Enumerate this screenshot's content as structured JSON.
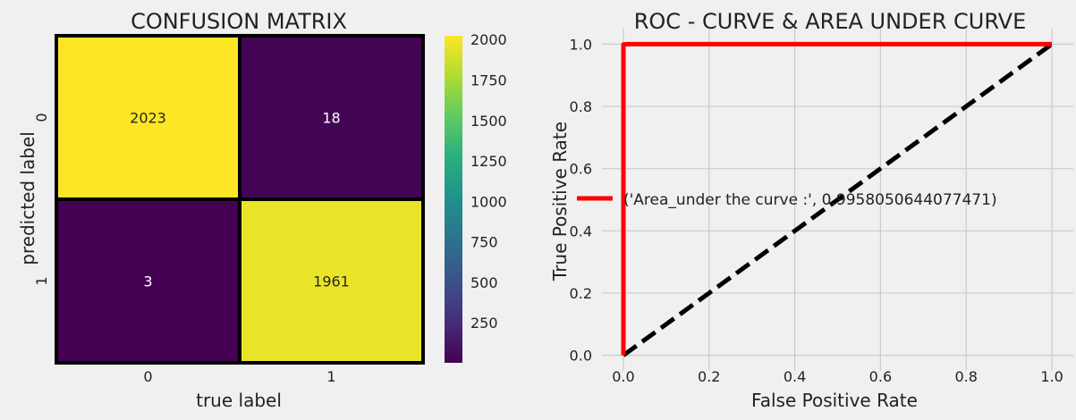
{
  "chart_data": [
    {
      "type": "heatmap",
      "title": "CONFUSION MATRIX",
      "xlabel": "true label",
      "ylabel": "predicted label",
      "x_tick_labels": [
        "0",
        "1"
      ],
      "y_tick_labels": [
        "0",
        "1"
      ],
      "values": [
        [
          2023,
          18
        ],
        [
          3,
          1961
        ]
      ],
      "cell_labels": [
        [
          "2023",
          "18"
        ],
        [
          "3",
          "1961"
        ]
      ],
      "colormap": "viridis",
      "colorbar": {
        "ticks": [
          250,
          500,
          750,
          1000,
          1250,
          1500,
          1750,
          2000
        ],
        "tick_labels": [
          "250",
          "500",
          "750",
          "1000",
          "1250",
          "1500",
          "1750",
          "2000"
        ],
        "range": [
          3,
          2023
        ]
      },
      "cell_border_color": "#000000"
    },
    {
      "type": "line",
      "title": "ROC - CURVE & AREA UNDER CURVE",
      "xlabel": "False Positive Rate",
      "ylabel": "True Positive Rate",
      "xlim": [
        -0.05,
        1.05
      ],
      "ylim": [
        -0.05,
        1.05
      ],
      "x_ticks": [
        0.0,
        0.2,
        0.4,
        0.6,
        0.8,
        1.0
      ],
      "x_tick_labels": [
        "0.0",
        "0.2",
        "0.4",
        "0.6",
        "0.8",
        "1.0"
      ],
      "y_ticks": [
        0.0,
        0.2,
        0.4,
        0.6,
        0.8,
        1.0
      ],
      "y_tick_labels": [
        "0.0",
        "0.2",
        "0.4",
        "0.6",
        "0.8",
        "1.0"
      ],
      "grid": true,
      "legend_placement": "center-right",
      "series": [
        {
          "name": "('Area_under the curve :', 0.9958050644077471)",
          "color": "#ff0000",
          "style": "solid",
          "x": [
            0.0,
            0.0,
            0.0089,
            1.0
          ],
          "y": [
            0.0,
            0.9985,
            1.0,
            1.0
          ]
        },
        {
          "color": "#000000",
          "style": "dashed",
          "x": [
            0.0,
            1.0
          ],
          "y": [
            0.0,
            1.0
          ]
        }
      ]
    }
  ],
  "colors": {
    "background": "#f0f0f0",
    "grid": "#cbcbcb",
    "text": "#222222"
  }
}
